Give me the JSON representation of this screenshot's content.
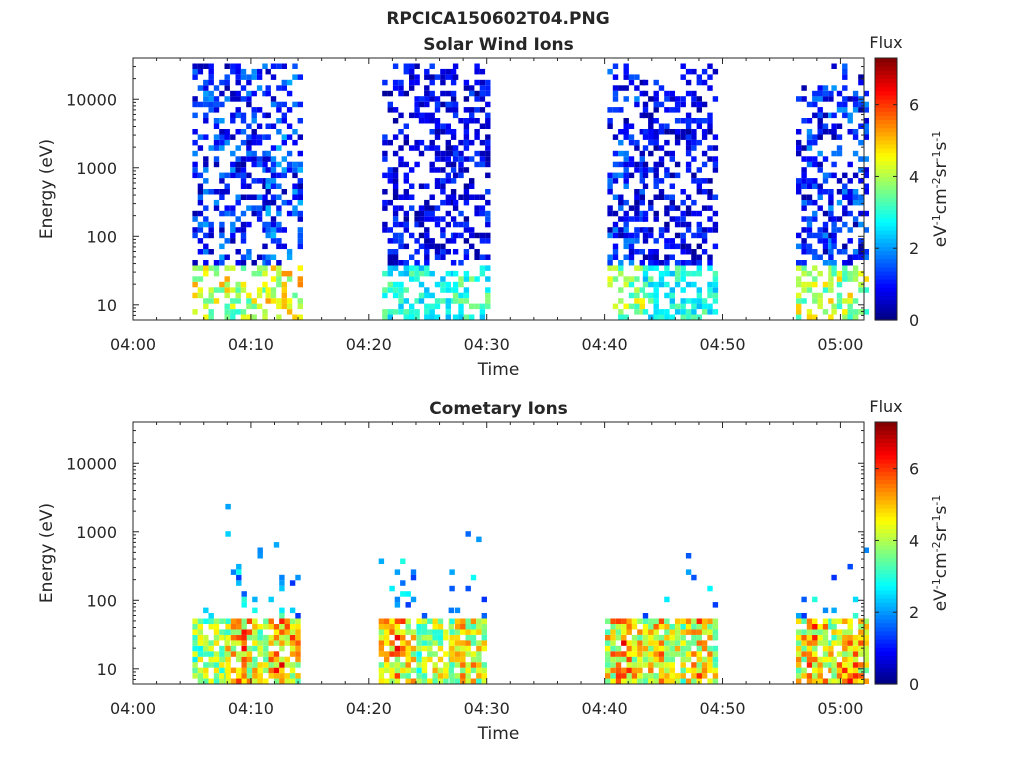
{
  "figure_title": "RPCICA150602T04.PNG",
  "colors": {
    "colormap": [
      "#00007f",
      "#0000ff",
      "#007fff",
      "#00ffff",
      "#7fff7f",
      "#ffff00",
      "#ff7f00",
      "#ff0000",
      "#7f0000"
    ],
    "axes": "#262626",
    "background": "#ffffff"
  },
  "chart_data": [
    {
      "type": "heatmap",
      "title": "Solar Wind Ions",
      "xlabel": "Time",
      "ylabel": "Energy (eV)",
      "xlim": [
        "04:00",
        "05:02"
      ],
      "x_ticks": [
        "04:00",
        "04:10",
        "04:20",
        "04:30",
        "04:40",
        "04:50",
        "05:00"
      ],
      "y_scale": "log",
      "ylim": [
        6,
        40000
      ],
      "y_ticks": [
        "10",
        "100",
        "1000",
        "10000"
      ],
      "colorbar": {
        "title": "Flux",
        "label": "eV-1cm-2sr-1s-1",
        "range": [
          0,
          7.3
        ],
        "ticks": [
          "0",
          "2",
          "4",
          "6"
        ]
      },
      "bursts": [
        {
          "time_min": 6.4,
          "max_energy_ev": 35000,
          "max_flux": 5.2
        },
        {
          "time_min": 9.6,
          "max_energy_ev": 35000,
          "max_flux": 5.0
        },
        {
          "time_min": 12.6,
          "max_energy_ev": 35000,
          "max_flux": 5.6
        },
        {
          "time_min": 22.5,
          "max_energy_ev": 35000,
          "max_flux": 3.6
        },
        {
          "time_min": 25.6,
          "max_energy_ev": 35000,
          "max_flux": 3.5
        },
        {
          "time_min": 28.5,
          "max_energy_ev": 35000,
          "max_flux": 3.8
        },
        {
          "time_min": 41.6,
          "max_energy_ev": 35000,
          "max_flux": 4.8
        },
        {
          "time_min": 44.6,
          "max_energy_ev": 20000,
          "max_flux": 3.6
        },
        {
          "time_min": 47.8,
          "max_energy_ev": 35000,
          "max_flux": 3.6
        },
        {
          "time_min": 57.6,
          "max_energy_ev": 15000,
          "max_flux": 5.0
        },
        {
          "time_min": 60.6,
          "max_energy_ev": 35000,
          "max_flux": 5.0
        }
      ]
    },
    {
      "type": "heatmap",
      "title": "Cometary Ions",
      "xlabel": "Time",
      "ylabel": "Energy (eV)",
      "xlim": [
        "04:00",
        "05:02"
      ],
      "x_ticks": [
        "04:00",
        "04:10",
        "04:20",
        "04:30",
        "04:40",
        "04:50",
        "05:00"
      ],
      "y_scale": "log",
      "ylim": [
        6,
        40000
      ],
      "y_ticks": [
        "10",
        "100",
        "1000",
        "10000"
      ],
      "colorbar": {
        "title": "Flux",
        "label": "eV-1cm-2sr-1s-1",
        "range": [
          0,
          7.3
        ],
        "ticks": [
          "0",
          "2",
          "4",
          "6"
        ]
      },
      "bursts": [
        {
          "time_min": 6.4,
          "max_energy_ev": 200,
          "max_flux": 5.4
        },
        {
          "time_min": 9.2,
          "max_energy_ev": 2500,
          "max_flux": 6.4
        },
        {
          "time_min": 12.4,
          "max_energy_ev": 1300,
          "max_flux": 6.8
        },
        {
          "time_min": 22.2,
          "max_energy_ev": 800,
          "max_flux": 6.6
        },
        {
          "time_min": 25.4,
          "max_energy_ev": 120,
          "max_flux": 5.4
        },
        {
          "time_min": 28.2,
          "max_energy_ev": 2000,
          "max_flux": 6.0
        },
        {
          "time_min": 41.4,
          "max_energy_ev": 300,
          "max_flux": 6.6
        },
        {
          "time_min": 44.6,
          "max_energy_ev": 400,
          "max_flux": 6.4
        },
        {
          "time_min": 47.8,
          "max_energy_ev": 800,
          "max_flux": 6.2
        },
        {
          "time_min": 57.6,
          "max_energy_ev": 300,
          "max_flux": 6.6
        },
        {
          "time_min": 60.6,
          "max_energy_ev": 1200,
          "max_flux": 6.6
        }
      ]
    }
  ]
}
